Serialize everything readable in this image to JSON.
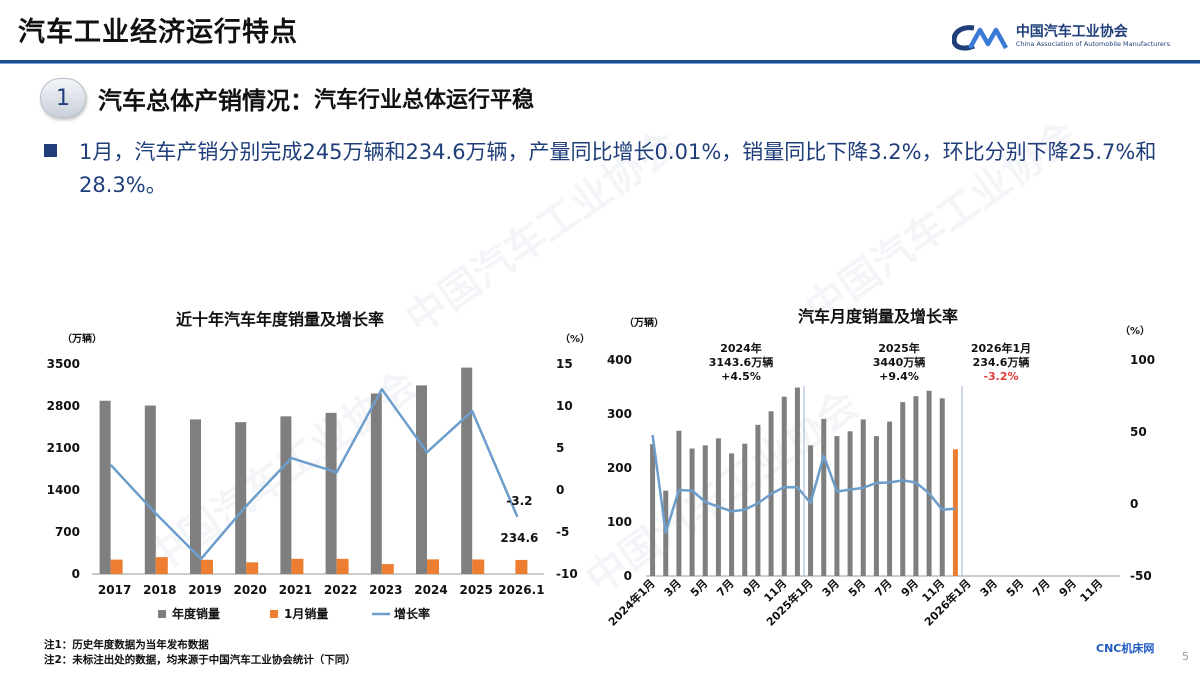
{
  "header": {
    "title": "汽车工业经济运行特点",
    "logo_cn": "中国汽车工业协会",
    "logo_en": "China Association of Automobile Manufacturers"
  },
  "section": {
    "number": "1",
    "title": "汽车总体产销情况：",
    "subtitle": "汽车行业总体运行平稳"
  },
  "bullet": {
    "text": "1月，汽车产销分别完成245万辆和234.6万辆，产量同比增长0.01%，销量同比下降3.2%，环比分别下降25.7%和28.3%。"
  },
  "colors": {
    "bar_gray": "#7f7f7f",
    "bar_orange": "#ed7d31",
    "line_blue": "#6d9ecb",
    "accent_navy": "#1f3e7a",
    "negative_red": "#e03a3a"
  },
  "chart_data": [
    {
      "type": "bar",
      "title": "近十年汽车年度销量及增长率",
      "y_unit_left": "（万辆）",
      "y_unit_right": "（%）",
      "categories": [
        "2017",
        "2018",
        "2019",
        "2020",
        "2021",
        "2022",
        "2023",
        "2024",
        "2025",
        "2026.1"
      ],
      "ylim_left": [
        0,
        3500
      ],
      "yticks_left": [
        "3500",
        "2800",
        "2100",
        "1400",
        "700",
        "0"
      ],
      "ylim_right": [
        -10,
        15
      ],
      "yticks_right": [
        "15",
        "10",
        "5",
        "0",
        "-5",
        "-10"
      ],
      "series": [
        {
          "name": "年度销量",
          "kind": "bar",
          "values": [
            2888,
            2808,
            2577,
            2531,
            2628,
            2686,
            3009,
            3144,
            3440,
            null
          ]
        },
        {
          "name": "1月销量",
          "kind": "bar",
          "values": [
            240,
            281,
            237,
            194,
            253,
            253,
            164,
            244,
            242,
            234.6
          ]
        },
        {
          "name": "增长率",
          "kind": "line",
          "values": [
            3.0,
            -2.8,
            -8.2,
            -1.9,
            3.8,
            2.1,
            12.0,
            4.5,
            9.4,
            -3.2
          ]
        }
      ],
      "data_labels": {
        "last_bar": "234.6",
        "last_point": "-3.2"
      },
      "legend": [
        "年度销量",
        "1月销量",
        "增长率"
      ]
    },
    {
      "type": "bar",
      "title": "汽车月度销量及增长率",
      "y_unit_left": "（万辆）",
      "y_unit_right": "（%）",
      "ylim_left": [
        0,
        400
      ],
      "yticks_left": [
        "400",
        "300",
        "200",
        "100",
        "0"
      ],
      "ylim_right": [
        -50,
        100
      ],
      "yticks_right": [
        "100",
        "50",
        "0",
        "-50"
      ],
      "x_labels": [
        "2024年1月",
        "3月",
        "5月",
        "7月",
        "9月",
        "11月",
        "2025年1月",
        "3月",
        "5月",
        "7月",
        "9月",
        "11月",
        "2026年1月",
        "3月",
        "5月",
        "7月",
        "9月",
        "11月"
      ],
      "series": [
        {
          "name": "月度销量",
          "kind": "bar",
          "values": [
            244,
            158,
            269,
            236,
            242,
            255,
            227,
            245,
            280,
            305,
            332,
            349,
            242,
            291,
            259,
            268,
            290,
            259,
            286,
            322,
            333,
            343,
            329,
            234.6
          ]
        },
        {
          "name": "增长率",
          "kind": "line",
          "values": [
            47.9,
            -19.9,
            9.7,
            9.3,
            1.4,
            -1.9,
            -5.1,
            -3.9,
            0.5,
            7.0,
            11.7,
            11.6,
            0.7,
            33.6,
            8.7,
            10.0,
            11.2,
            14.7,
            14.9,
            16.4,
            14.9,
            7.4,
            -4.0,
            -3.2
          ]
        }
      ],
      "annotations": [
        {
          "line1": "2024年",
          "line2": "3143.6万辆",
          "line3": "+4.5%"
        },
        {
          "line1": "2025年",
          "line2": "3440万辆",
          "line3": "+9.4%"
        },
        {
          "line1": "2026年1月",
          "line2": "234.6万辆",
          "line3": "-3.2%"
        }
      ]
    }
  ],
  "notes": {
    "note1": "注1：历史年度数据为当年发布数据",
    "note2": "注2：未标注出处的数据，均来源于中国汽车工业协会统计（下同）"
  },
  "footer": {
    "brand": "CNC机床网",
    "page": "5"
  }
}
